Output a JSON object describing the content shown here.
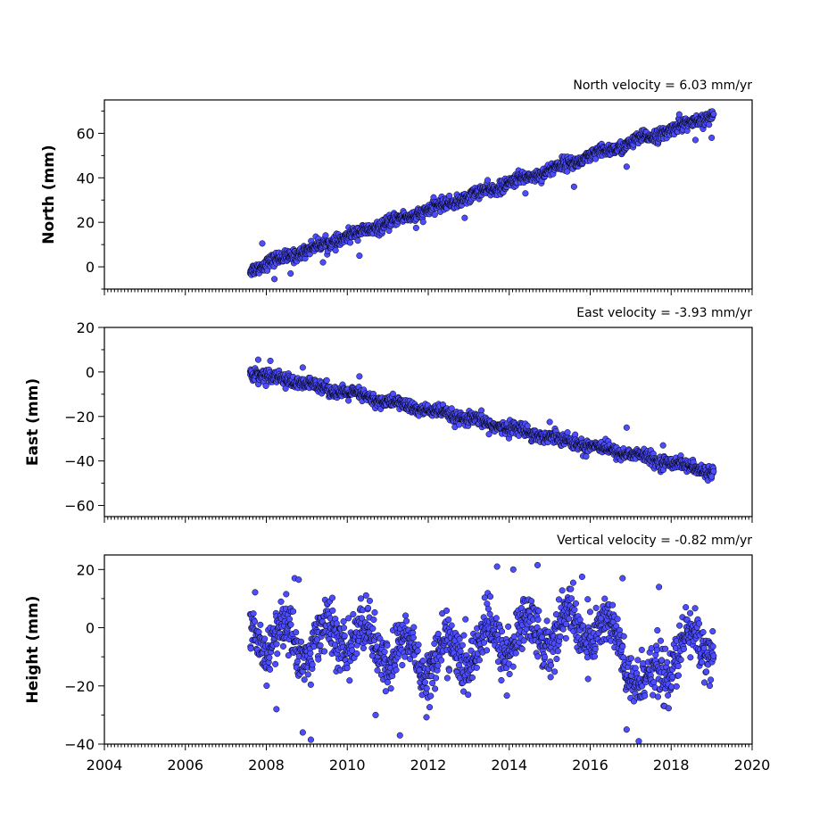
{
  "colors": {
    "marker_fill": "#4d4dff",
    "marker_edge": "#000000",
    "axes": "#000000",
    "background": "#ffffff"
  },
  "chart_data": [
    {
      "type": "scatter",
      "id": "north",
      "title": "North velocity = 6.03 mm/yr",
      "xlabel": "",
      "ylabel": "North (mm)",
      "xlim": [
        2004,
        2020
      ],
      "ylim": [
        -10,
        75
      ],
      "xticks": [
        2004,
        2006,
        2008,
        2010,
        2012,
        2014,
        2016,
        2018,
        2020
      ],
      "xtick_labels_shown": false,
      "yticks": [
        0,
        20,
        40,
        60
      ],
      "ytick_labels": [
        "0",
        "20",
        "40",
        "60"
      ],
      "grid": false,
      "series_time_range": [
        2007.6,
        2019.05
      ],
      "trend": {
        "x": [
          2007.6,
          2019.05
        ],
        "y": [
          -1,
          68
        ]
      },
      "outliers": [
        {
          "x": 2007.9,
          "y": 10.5
        },
        {
          "x": 2008.2,
          "y": -5.5
        },
        {
          "x": 2008.6,
          "y": -3
        },
        {
          "x": 2009.4,
          "y": 2
        },
        {
          "x": 2010.3,
          "y": 5
        },
        {
          "x": 2011.7,
          "y": 17.5
        },
        {
          "x": 2012.9,
          "y": 22
        },
        {
          "x": 2014.4,
          "y": 33
        },
        {
          "x": 2015.6,
          "y": 36
        },
        {
          "x": 2016.9,
          "y": 45
        },
        {
          "x": 2018.2,
          "y": 68.5
        },
        {
          "x": 2018.6,
          "y": 57
        },
        {
          "x": 2019.0,
          "y": 58
        }
      ]
    },
    {
      "type": "scatter",
      "id": "east",
      "title": "East velocity = -3.93 mm/yr",
      "xlabel": "",
      "ylabel": "East (mm)",
      "xlim": [
        2004,
        2020
      ],
      "ylim": [
        -65,
        20
      ],
      "xticks": [
        2004,
        2006,
        2008,
        2010,
        2012,
        2014,
        2016,
        2018,
        2020
      ],
      "xtick_labels_shown": false,
      "yticks": [
        20,
        0,
        -20,
        -40,
        -60
      ],
      "ytick_labels": [
        "20",
        "0",
        "−20",
        "−40",
        "−60"
      ],
      "grid": false,
      "series_time_range": [
        2007.6,
        2019.05
      ],
      "trend": {
        "x": [
          2007.6,
          2019.05
        ],
        "y": [
          0,
          -45
        ]
      },
      "outliers": [
        {
          "x": 2007.8,
          "y": 5.5
        },
        {
          "x": 2008.1,
          "y": 5
        },
        {
          "x": 2008.9,
          "y": 2
        },
        {
          "x": 2010.3,
          "y": -2
        },
        {
          "x": 2013.5,
          "y": -28
        },
        {
          "x": 2015.0,
          "y": -22.5
        },
        {
          "x": 2015.9,
          "y": -38
        },
        {
          "x": 2016.9,
          "y": -25
        },
        {
          "x": 2017.8,
          "y": -33
        },
        {
          "x": 2019.0,
          "y": -47
        }
      ]
    },
    {
      "type": "scatter",
      "id": "height",
      "title": "Vertical velocity = -0.82 mm/yr",
      "xlabel": "",
      "ylabel": "Height (mm)",
      "xlim": [
        2004,
        2020
      ],
      "ylim": [
        -40,
        25
      ],
      "xticks": [
        2004,
        2006,
        2008,
        2010,
        2012,
        2014,
        2016,
        2018,
        2020
      ],
      "xtick_labels": [
        "2004",
        "2006",
        "2008",
        "2010",
        "2012",
        "2014",
        "2016",
        "2018",
        "2020"
      ],
      "xtick_labels_shown": true,
      "yticks": [
        20,
        0,
        -20,
        -40
      ],
      "ytick_labels": [
        "20",
        "0",
        "−20",
        "−40"
      ],
      "grid": false,
      "series_time_range": [
        2007.6,
        2019.05
      ],
      "trend": {
        "x": [
          2007.6,
          2019.05
        ],
        "y": [
          -2,
          -11
        ]
      },
      "outliers": [
        {
          "x": 2008.25,
          "y": -28
        },
        {
          "x": 2008.7,
          "y": 17
        },
        {
          "x": 2008.8,
          "y": 16.5
        },
        {
          "x": 2008.9,
          "y": -36
        },
        {
          "x": 2009.1,
          "y": -38.5
        },
        {
          "x": 2010.7,
          "y": -30
        },
        {
          "x": 2011.3,
          "y": -37
        },
        {
          "x": 2013.7,
          "y": 21
        },
        {
          "x": 2014.1,
          "y": 20
        },
        {
          "x": 2014.7,
          "y": 21.5
        },
        {
          "x": 2015.8,
          "y": 17.5
        },
        {
          "x": 2016.8,
          "y": 17
        },
        {
          "x": 2016.9,
          "y": -35
        },
        {
          "x": 2017.2,
          "y": -39
        },
        {
          "x": 2017.7,
          "y": 14
        }
      ]
    }
  ]
}
